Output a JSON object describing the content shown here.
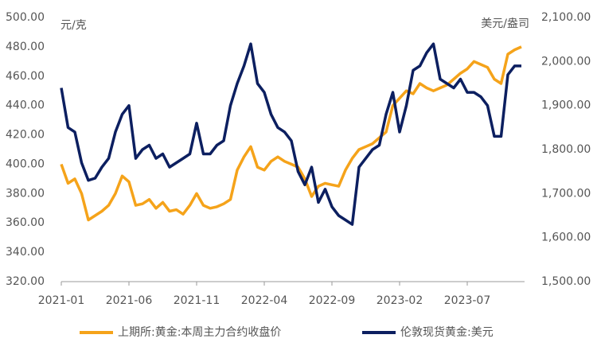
{
  "chart_data": {
    "type": "line",
    "y_label": "元/克",
    "y2_label": "美元/盎司",
    "categories": [
      "2021-01",
      null,
      null,
      null,
      null,
      null,
      null,
      null,
      null,
      null,
      "2021-06",
      null,
      null,
      null,
      null,
      null,
      null,
      null,
      null,
      null,
      "2021-11",
      null,
      null,
      null,
      null,
      null,
      null,
      null,
      null,
      null,
      "2022-04",
      null,
      null,
      null,
      null,
      null,
      null,
      null,
      null,
      null,
      "2022-09",
      null,
      null,
      null,
      null,
      null,
      null,
      null,
      null,
      null,
      "2023-02",
      null,
      null,
      null,
      null,
      null,
      null,
      null,
      null,
      null,
      "2023-07",
      null,
      null,
      null,
      null,
      null,
      null,
      null,
      null
    ],
    "series": [
      {
        "name": "上期所:黄金:本周主力合约收盘价",
        "color": "#f5a31a",
        "values": [
          400,
          387,
          390,
          380,
          362,
          365,
          368,
          372,
          380,
          392,
          388,
          372,
          373,
          376,
          370,
          374,
          368,
          369,
          366,
          372,
          380,
          372,
          370,
          371,
          373,
          376,
          396,
          405,
          412,
          398,
          396,
          402,
          405,
          402,
          400,
          398,
          390,
          378,
          385,
          387,
          386,
          385,
          396,
          404,
          410,
          412,
          414,
          418,
          422,
          440,
          445,
          450,
          448,
          455,
          452,
          450,
          452,
          454,
          458,
          462,
          465,
          470,
          468,
          466,
          458,
          455,
          475,
          478,
          480
        ]
      },
      {
        "name": "伦敦现货黄金:美元",
        "color": "#0c1f60",
        "axis": "y2",
        "values": [
          1940,
          1850,
          1840,
          1770,
          1730,
          1735,
          1760,
          1780,
          1840,
          1880,
          1900,
          1780,
          1800,
          1810,
          1780,
          1790,
          1760,
          1770,
          1780,
          1790,
          1860,
          1790,
          1790,
          1810,
          1820,
          1900,
          1950,
          1990,
          2040,
          1950,
          1930,
          1880,
          1850,
          1840,
          1820,
          1750,
          1720,
          1760,
          1680,
          1710,
          1670,
          1650,
          1640,
          1630,
          1760,
          1780,
          1800,
          1810,
          1880,
          1930,
          1840,
          1900,
          1980,
          1990,
          2020,
          2040,
          1960,
          1950,
          1940,
          1960,
          1930,
          1930,
          1920,
          1900,
          1830,
          1830,
          1970,
          1990,
          1990
        ]
      }
    ],
    "ylim": [
      320,
      500
    ],
    "yticks": [
      {
        "value": 320,
        "label": "320.00"
      },
      {
        "value": 340,
        "label": "340.00"
      },
      {
        "value": 360,
        "label": "360.00"
      },
      {
        "value": 380,
        "label": "380.00"
      },
      {
        "value": 400,
        "label": "400.00"
      },
      {
        "value": 420,
        "label": "420.00"
      },
      {
        "value": 440,
        "label": "440.00"
      },
      {
        "value": 460,
        "label": "460.00"
      },
      {
        "value": 480,
        "label": "480.00"
      },
      {
        "value": 500,
        "label": "500.00"
      }
    ],
    "y2lim": [
      1500,
      2100
    ],
    "y2ticks": [
      {
        "value": 1500,
        "label": "1,500.00"
      },
      {
        "value": 1600,
        "label": "1,600.00"
      },
      {
        "value": 1700,
        "label": "1,700.00"
      },
      {
        "value": 1800,
        "label": "1,800.00"
      },
      {
        "value": 1900,
        "label": "1,900.00"
      },
      {
        "value": 2000,
        "label": "2,000.00"
      },
      {
        "value": 2100,
        "label": "2,100.00"
      }
    ],
    "grid": false,
    "legend": "bottom"
  }
}
